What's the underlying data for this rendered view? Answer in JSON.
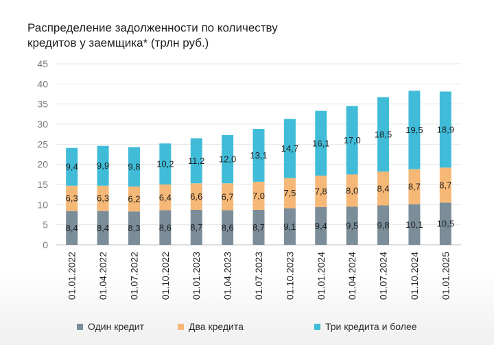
{
  "chart_data": {
    "type": "bar",
    "stacked": true,
    "title": "Распределение задолженности по количеству кредитов у заемщика* (трлн руб.)",
    "title_lines": [
      "Распределение задолженности по количеству",
      "кредитов у заемщика* (трлн руб.)"
    ],
    "categories": [
      "01.01.2022",
      "01.04.2022",
      "01.07.2022",
      "01.10.2022",
      "01.01.2023",
      "01.04.2023",
      "01.07.2023",
      "01.10.2023",
      "01.01.2024",
      "01.04.2024",
      "01.07.2024",
      "01.10.2024",
      "01.01.2025"
    ],
    "series": [
      {
        "name": "Один кредит",
        "color": "#7a8d99",
        "values": [
          8.4,
          8.4,
          8.3,
          8.6,
          8.7,
          8.6,
          8.7,
          9.1,
          9.4,
          9.5,
          9.8,
          10.1,
          10.5
        ],
        "labels": [
          "8,4",
          "8,4",
          "8,3",
          "8,6",
          "8,7",
          "8,6",
          "8,7",
          "9,1",
          "9,4",
          "9,5",
          "9,8",
          "10,1",
          "10,5"
        ]
      },
      {
        "name": "Два кредита",
        "color": "#f6b877",
        "values": [
          6.3,
          6.3,
          6.2,
          6.4,
          6.6,
          6.7,
          7.0,
          7.5,
          7.8,
          8.0,
          8.4,
          8.7,
          8.7
        ],
        "labels": [
          "6,3",
          "6,3",
          "6,2",
          "6,4",
          "6,6",
          "6,7",
          "7,0",
          "7,5",
          "7,8",
          "8,0",
          "8,4",
          "8,7",
          "8,7"
        ]
      },
      {
        "name": "Три кредита и более",
        "color": "#40bcd9",
        "values": [
          9.4,
          9.9,
          9.8,
          10.2,
          11.2,
          12.0,
          13.1,
          14.7,
          16.1,
          17.0,
          18.5,
          19.5,
          18.9
        ],
        "labels": [
          "9,4",
          "9,9",
          "9,8",
          "10,2",
          "11,2",
          "12,0",
          "13,1",
          "14,7",
          "16,1",
          "17,0",
          "18,5",
          "19,5",
          "18,9"
        ]
      }
    ],
    "ylim": [
      0,
      45
    ],
    "yticks": [
      0,
      5,
      10,
      15,
      20,
      25,
      30,
      35,
      40,
      45
    ],
    "grid": true,
    "legend_position": "bottom"
  }
}
